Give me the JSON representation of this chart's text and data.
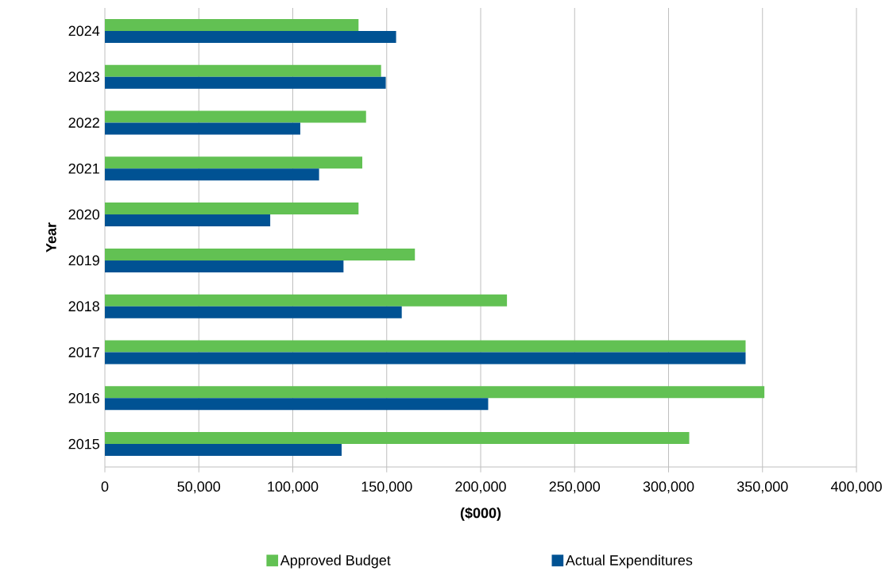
{
  "chart_data": {
    "type": "bar",
    "orientation": "horizontal",
    "xlabel": "($000)",
    "ylabel": "Year",
    "categories": [
      "2024",
      "2023",
      "2022",
      "2021",
      "2020",
      "2019",
      "2018",
      "2017",
      "2016",
      "2015"
    ],
    "series": [
      {
        "name": "Approved Budget",
        "color": "#62c153",
        "values": [
          135000,
          147000,
          139000,
          137000,
          135000,
          165000,
          214000,
          341000,
          351000,
          311000
        ]
      },
      {
        "name": "Actual Expenditures",
        "color": "#005293",
        "values": [
          155000,
          149500,
          104000,
          114000,
          88000,
          127000,
          158000,
          341000,
          204000,
          126000
        ]
      }
    ],
    "xlim": [
      0,
      400000
    ],
    "xticks": [
      0,
      {
        "value": 50000,
        "label": "50,000"
      },
      {
        "value": 100000,
        "label": "100,000"
      },
      {
        "value": 150000,
        "label": "150,000"
      },
      {
        "value": 200000,
        "label": "200,000"
      },
      {
        "value": 250000,
        "label": "250,000"
      },
      {
        "value": 300000,
        "label": "300,000"
      },
      {
        "value": 350000,
        "label": "350,000"
      },
      {
        "value": 400000,
        "label": "400,000"
      }
    ],
    "grid": "x",
    "legend": "bottom"
  }
}
